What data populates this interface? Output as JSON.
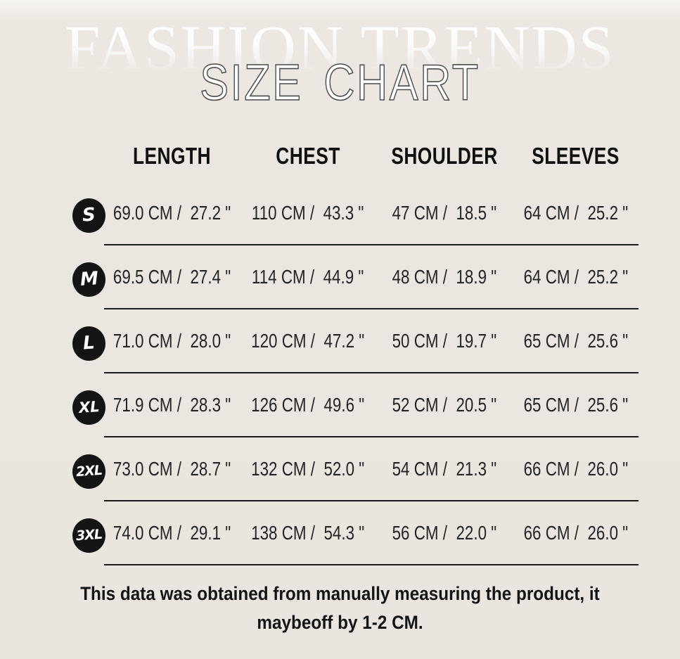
{
  "page": {
    "background": "#eae5de",
    "badge_color": "#141414",
    "line_color": "#1b1b1b"
  },
  "watermark": {
    "text": "FASHION TRENDS"
  },
  "title": {
    "text": "SIZE CHART"
  },
  "table": {
    "columns": [
      "LENGTH",
      "CHEST",
      "SHOULDER",
      "SLEEVES"
    ],
    "rows": [
      {
        "size": "S",
        "values": [
          "69.0 CM /  27.2 \"",
          "110 CM /  43.3 \"",
          "47 CM /  18.5 \"",
          "64 CM /  25.2 \""
        ]
      },
      {
        "size": "M",
        "values": [
          "69.5 CM /  27.4 \"",
          "114 CM /  44.9 \"",
          "48 CM /  18.9 \"",
          "64 CM /  25.2 \""
        ]
      },
      {
        "size": "L",
        "values": [
          "71.0 CM /  28.0 \"",
          "120 CM /  47.2 \"",
          "50 CM /  19.7 \"",
          "65 CM /  25.6 \""
        ]
      },
      {
        "size": "XL",
        "values": [
          "71.9 CM /  28.3 \"",
          "126 CM /  49.6 \"",
          "52 CM /  20.5 \"",
          "65 CM /  25.6 \""
        ]
      },
      {
        "size": "2XL",
        "values": [
          "73.0 CM /  28.7 \"",
          "132 CM /  52.0 \"",
          "54 CM /  21.3 \"",
          "66 CM /  26.0 \""
        ]
      },
      {
        "size": "3XL",
        "values": [
          "74.0 CM /  29.1 \"",
          "138 CM /  54.3 \"",
          "56 CM /  22.0 \"",
          "66 CM /  26.0 \""
        ]
      }
    ]
  },
  "footer": {
    "line1": "This data was obtained from manually measuring the product, it",
    "line2": "maybeoff by 1-2 CM."
  }
}
